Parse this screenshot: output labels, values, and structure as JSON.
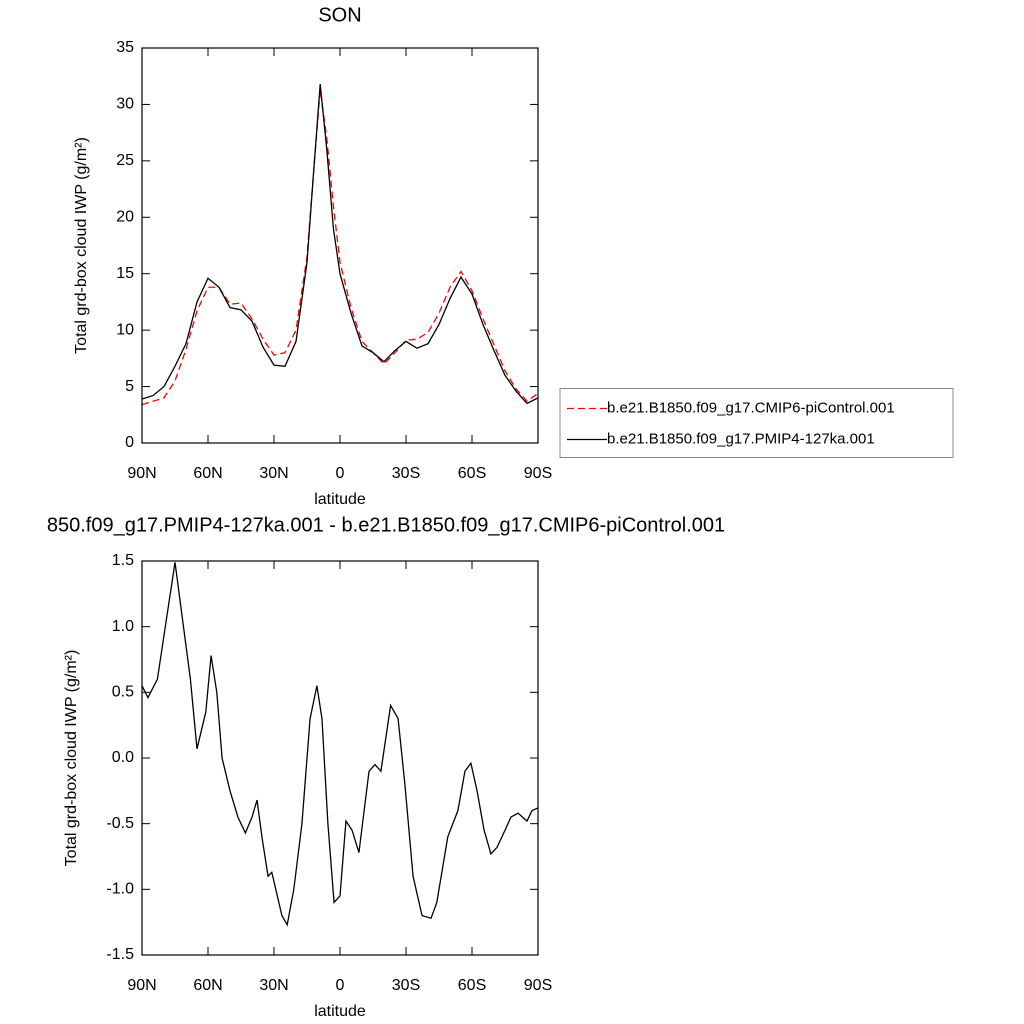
{
  "chart_data": [
    {
      "type": "line",
      "title": "SON",
      "xlabel": "latitude",
      "ylabel": "Total grd-box cloud IWP (g/m²)",
      "x": [
        90,
        85,
        80,
        75,
        70,
        65,
        60,
        55,
        50,
        45,
        40,
        35,
        30,
        25,
        20,
        15,
        12,
        9,
        6,
        3,
        0,
        -5,
        -10,
        -15,
        -20,
        -25,
        -30,
        -35,
        -40,
        -45,
        -50,
        -55,
        -60,
        -65,
        -70,
        -75,
        -80,
        -85,
        -90
      ],
      "series": [
        {
          "name": "b.e21.B1850.f09_g17.CMIP6-piControl.001",
          "color": "#ff0000",
          "linestyle": "dashed",
          "values": [
            3.4,
            3.7,
            4.0,
            5.5,
            8.3,
            11.7,
            13.8,
            13.8,
            12.3,
            12.4,
            11.0,
            9.2,
            7.8,
            8.0,
            10.0,
            16.5,
            24,
            31.3,
            27,
            21,
            16,
            12,
            9,
            8,
            7.0,
            8.0,
            9.1,
            9.2,
            9.8,
            11.5,
            13.8,
            15.2,
            13.5,
            11.0,
            8.7,
            6.4,
            4.8,
            3.7,
            4.4
          ]
        },
        {
          "name": "b.e21.B1850.f09_g17.PMIP4-127ka.001",
          "color": "#000000",
          "linestyle": "solid",
          "values": [
            3.9,
            4.2,
            5.0,
            6.8,
            8.8,
            12.5,
            14.6,
            13.8,
            12.0,
            11.8,
            10.8,
            8.5,
            6.9,
            6.8,
            9.0,
            16,
            24,
            31.8,
            26,
            19,
            15,
            11.5,
            8.6,
            8.0,
            7.2,
            8.2,
            9.0,
            8.4,
            8.8,
            10.5,
            12.8,
            14.7,
            13.2,
            10.5,
            8.2,
            6.0,
            4.6,
            3.5,
            4.0
          ]
        }
      ],
      "xlim": [
        90,
        -90
      ],
      "xticks": [
        {
          "value": 90,
          "label": "90N"
        },
        {
          "value": 60,
          "label": "60N"
        },
        {
          "value": 30,
          "label": "30N"
        },
        0,
        {
          "value": -30,
          "label": "30S"
        },
        {
          "value": -60,
          "label": "60S"
        },
        {
          "value": -90,
          "label": "90S"
        }
      ],
      "ylim": [
        0,
        35
      ],
      "yticks": [
        0,
        5,
        10,
        15,
        20,
        25,
        30,
        35
      ],
      "legend": "right"
    },
    {
      "type": "line",
      "title": "850.f09_g17.PMIP4-127ka.001 - b.e21.B1850.f09_g17.CMIP6-piControl.001",
      "xlabel": "latitude",
      "ylabel": "Total grd-box cloud IWP (g/m²)",
      "x": [
        90,
        87.3,
        83,
        75,
        68,
        65,
        61,
        58.6,
        56,
        53.6,
        50,
        46.4,
        43,
        40,
        37.7,
        35.5,
        32.7,
        31,
        26.4,
        24,
        21,
        17.3,
        13.6,
        10.5,
        8.2,
        5.5,
        2.7,
        0,
        -2.7,
        -5.5,
        -8.6,
        -13.2,
        -15.9,
        -18.6,
        -23,
        -26.4,
        -29.5,
        -33.2,
        -37.3,
        -41.4,
        -44,
        -49,
        -53.6,
        -56.8,
        -59.5,
        -62.3,
        -65.5,
        -68.6,
        -71.4,
        -75,
        -77.7,
        -80.9,
        -85,
        -87.3,
        -90
      ],
      "series": [
        {
          "color": "#000000",
          "linestyle": "solid",
          "values": [
            0.55,
            0.46,
            0.6,
            1.49,
            0.6,
            0.07,
            0.35,
            0.78,
            0.5,
            0.0,
            -0.25,
            -0.45,
            -0.57,
            -0.45,
            -0.32,
            -0.6,
            -0.9,
            -0.87,
            -1.2,
            -1.27,
            -1.0,
            -0.5,
            0.3,
            0.55,
            0.3,
            -0.5,
            -1.1,
            -1.05,
            -0.48,
            -0.55,
            -0.72,
            -0.1,
            -0.05,
            -0.1,
            0.4,
            0.3,
            -0.2,
            -0.9,
            -1.2,
            -1.22,
            -1.1,
            -0.6,
            -0.4,
            -0.1,
            -0.04,
            -0.25,
            -0.55,
            -0.73,
            -0.68,
            -0.55,
            -0.45,
            -0.42,
            -0.48,
            -0.4,
            -0.38
          ]
        }
      ],
      "xlim": [
        90,
        -90
      ],
      "xticks": [
        {
          "value": 90,
          "label": "90N"
        },
        {
          "value": 60,
          "label": "60N"
        },
        {
          "value": 30,
          "label": "30N"
        },
        0,
        {
          "value": -30,
          "label": "30S"
        },
        {
          "value": -60,
          "label": "60S"
        },
        {
          "value": -90,
          "label": "90S"
        }
      ],
      "ylim": [
        -1.5,
        1.5
      ],
      "yticks": [
        -1.5,
        {
          "value": -1,
          "label": "-1.0"
        },
        -0.5,
        {
          "value": 0,
          "label": "0.0"
        },
        0.5,
        {
          "value": 1,
          "label": "1.0"
        },
        1.5
      ]
    }
  ]
}
